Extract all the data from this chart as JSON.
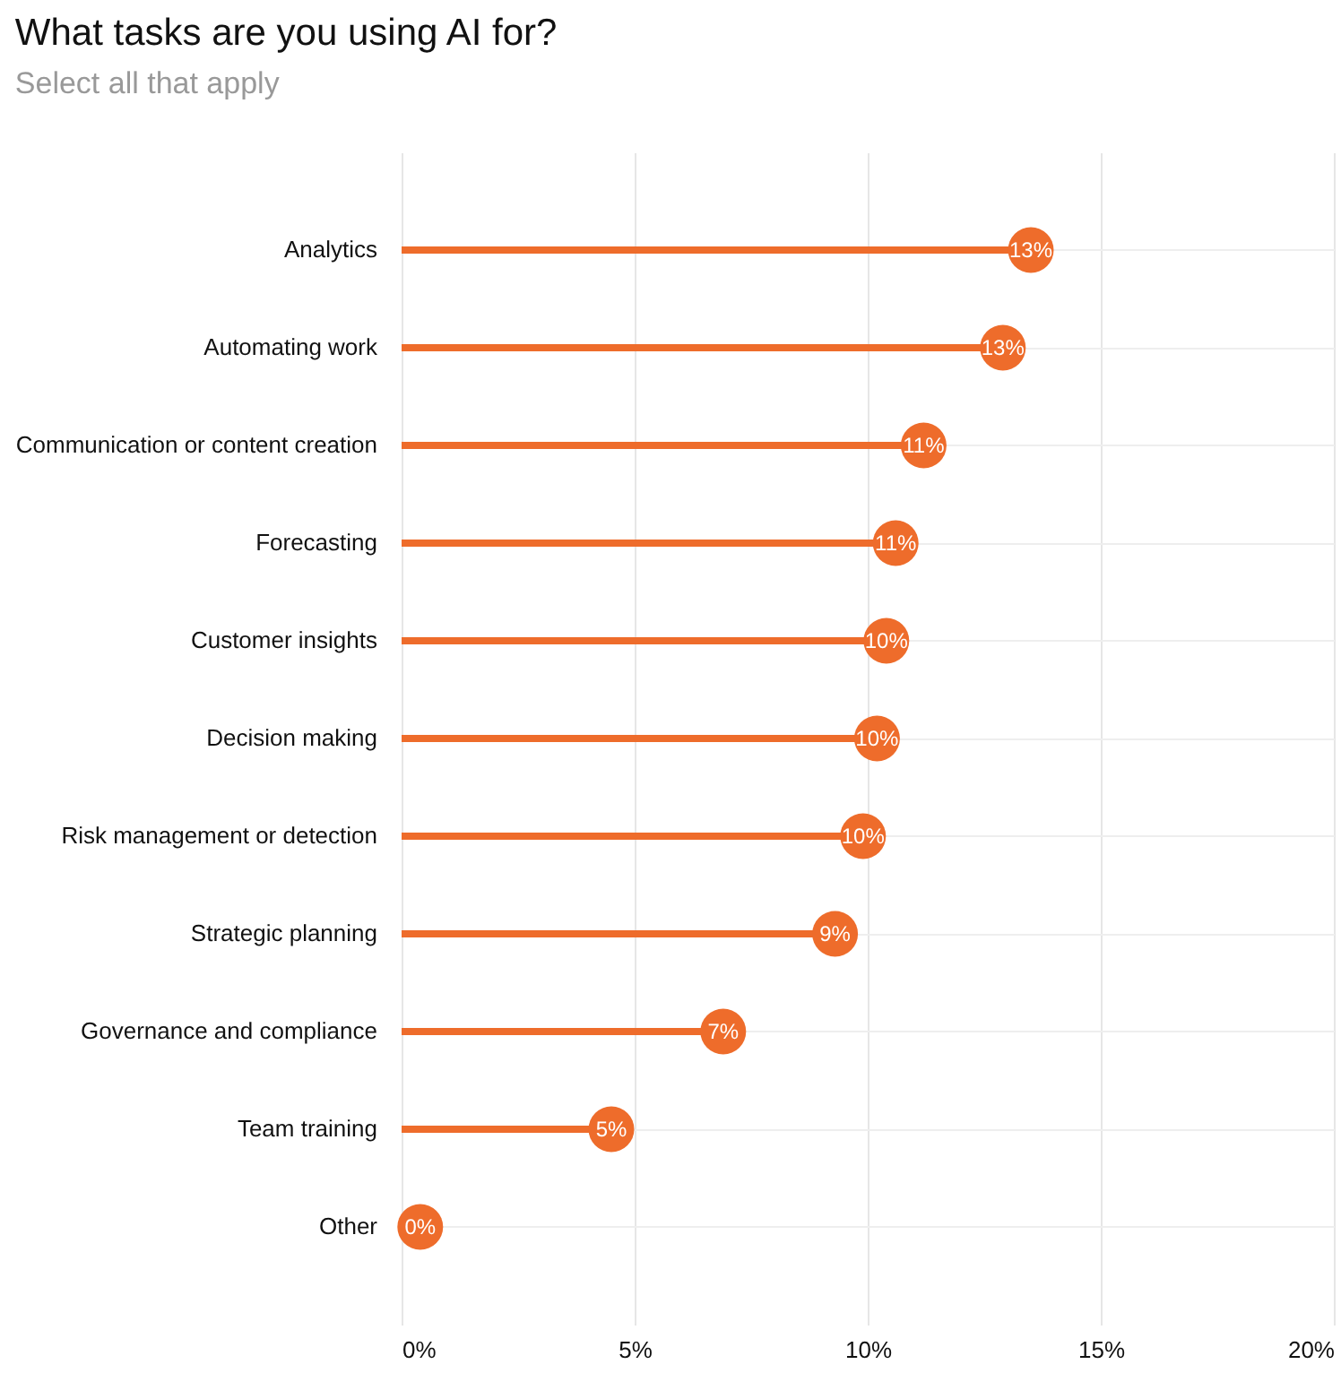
{
  "chart_data": {
    "type": "lollipop",
    "orientation": "horizontal",
    "title": "What tasks are you using AI for?",
    "subtitle": "Select all that apply",
    "categories": [
      "Analytics",
      "Automating work",
      "Communication or content creation",
      "Forecasting",
      "Customer insights",
      "Decision making",
      "Risk management or detection",
      "Strategic planning",
      "Governance and compliance",
      "Team training",
      "Other"
    ],
    "values": [
      13.5,
      12.9,
      11.2,
      10.6,
      10.4,
      10.2,
      9.9,
      9.3,
      6.9,
      4.5,
      0.4
    ],
    "value_labels": [
      "13%",
      "13%",
      "11%",
      "11%",
      "10%",
      "10%",
      "10%",
      "9%",
      "7%",
      "5%",
      "0%"
    ],
    "color": "#ee6c2b",
    "xlim": [
      0,
      20
    ],
    "xticks": [
      {
        "value": 0,
        "label": "0%"
      },
      {
        "value": 5,
        "label": "5%"
      },
      {
        "value": 10,
        "label": "10%"
      },
      {
        "value": 15,
        "label": "15%"
      },
      {
        "value": 20,
        "label": "20%"
      }
    ],
    "grid": true
  }
}
